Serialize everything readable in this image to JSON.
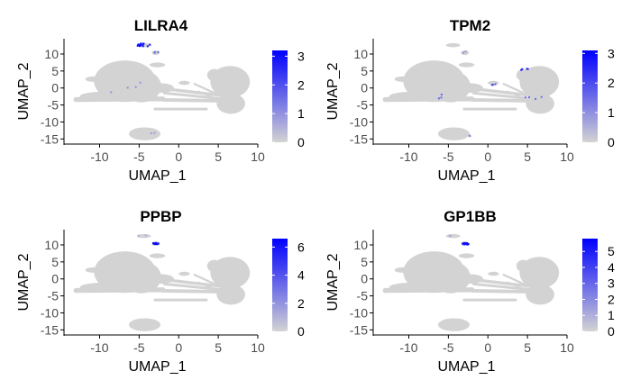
{
  "chart_data": [
    {
      "type": "scatter",
      "title": "LILRA4",
      "xlabel": "UMAP_1",
      "ylabel": "UMAP_2",
      "xlim": [
        -14.5,
        10
      ],
      "ylim": [
        -16.5,
        14.5
      ],
      "x_ticks": [
        -10,
        -5,
        0,
        5,
        10
      ],
      "y_ticks": [
        -15,
        -10,
        -5,
        0,
        5,
        10
      ],
      "grid": false,
      "legend": "right",
      "colorbar": {
        "min": 0,
        "max": 3.2,
        "ticks": [
          0,
          1,
          2,
          3
        ],
        "low_color": "#d3d3d3",
        "high_color": "#0000ff"
      },
      "hotspots": [
        {
          "x": -4.4,
          "y": 12.6,
          "value": 3.0,
          "spread": 0.8,
          "count": 14
        },
        {
          "x": -2.9,
          "y": 10.5,
          "value": 1.6,
          "spread": 0.4,
          "count": 3
        },
        {
          "x": -7.5,
          "y": 0.4,
          "value": 1.0,
          "spread": 3.0,
          "count": 4
        },
        {
          "x": -4.0,
          "y": -13.5,
          "value": 0.8,
          "spread": 1.0,
          "count": 2
        }
      ]
    },
    {
      "type": "scatter",
      "title": "TPM2",
      "xlabel": "UMAP_1",
      "ylabel": "UMAP_2",
      "xlim": [
        -14.5,
        10
      ],
      "ylim": [
        -16.5,
        14.5
      ],
      "x_ticks": [
        -10,
        -5,
        0,
        5,
        10
      ],
      "y_ticks": [
        -15,
        -10,
        -5,
        0,
        5,
        10
      ],
      "grid": false,
      "legend": "right",
      "colorbar": {
        "min": 0,
        "max": 3.1,
        "ticks": [
          0,
          1,
          2,
          3
        ],
        "low_color": "#d3d3d3",
        "high_color": "#0000ff"
      },
      "hotspots": [
        {
          "x": 4.8,
          "y": 5.6,
          "value": 2.6,
          "spread": 0.6,
          "count": 4
        },
        {
          "x": 1.0,
          "y": 1.2,
          "value": 2.0,
          "spread": 0.5,
          "count": 3
        },
        {
          "x": -5.5,
          "y": -2.5,
          "value": 1.6,
          "spread": 1.0,
          "count": 3
        },
        {
          "x": 5.5,
          "y": -2.5,
          "value": 1.5,
          "spread": 1.5,
          "count": 4
        },
        {
          "x": -2.5,
          "y": -14.0,
          "value": 1.2,
          "spread": 0.6,
          "count": 2
        },
        {
          "x": -3.0,
          "y": 10.5,
          "value": 1.0,
          "spread": 0.4,
          "count": 2
        }
      ]
    },
    {
      "type": "scatter",
      "title": "PPBP",
      "xlabel": "UMAP_1",
      "ylabel": "UMAP_2",
      "xlim": [
        -14.5,
        10
      ],
      "ylim": [
        -16.5,
        14.5
      ],
      "x_ticks": [
        -10,
        -5,
        0,
        5,
        10
      ],
      "y_ticks": [
        -15,
        -10,
        -5,
        0,
        5,
        10
      ],
      "grid": false,
      "legend": "right",
      "colorbar": {
        "min": 0,
        "max": 6.6,
        "ticks": [
          0,
          2,
          4,
          6
        ],
        "low_color": "#d3d3d3",
        "high_color": "#0000ff"
      },
      "hotspots": [
        {
          "x": -2.8,
          "y": 10.3,
          "value": 6.2,
          "spread": 0.4,
          "count": 14
        },
        {
          "x": -4.6,
          "y": 12.8,
          "value": 1.2,
          "spread": 0.5,
          "count": 2
        }
      ]
    },
    {
      "type": "scatter",
      "title": "GP1BB",
      "xlabel": "UMAP_1",
      "ylabel": "UMAP_2",
      "xlim": [
        -14.5,
        10
      ],
      "ylim": [
        -16.5,
        14.5
      ],
      "x_ticks": [
        -10,
        -5,
        0,
        5,
        10
      ],
      "y_ticks": [
        -15,
        -10,
        -5,
        0,
        5,
        10
      ],
      "grid": false,
      "legend": "right",
      "colorbar": {
        "min": 0,
        "max": 5.8,
        "ticks": [
          0,
          1,
          2,
          3,
          4,
          5
        ],
        "low_color": "#d3d3d3",
        "high_color": "#0000ff"
      },
      "hotspots": [
        {
          "x": -2.8,
          "y": 10.3,
          "value": 5.5,
          "spread": 0.4,
          "count": 14
        },
        {
          "x": -4.6,
          "y": 12.8,
          "value": 1.0,
          "spread": 0.5,
          "count": 2
        }
      ]
    }
  ],
  "embedding_shapes": [
    {
      "kind": "blob",
      "cx": -6.8,
      "cy": 2.0,
      "rx": 3.9,
      "ry": 6.1
    },
    {
      "kind": "blob",
      "cx": -4.7,
      "cy": 0.5,
      "rx": 2.5,
      "ry": 4.7
    },
    {
      "kind": "blob",
      "cx": 6.5,
      "cy": 1.8,
      "rx": 2.5,
      "ry": 4.7
    },
    {
      "kind": "blob",
      "cx": 6.6,
      "cy": -4.6,
      "rx": 1.8,
      "ry": 3.0
    },
    {
      "kind": "blob",
      "cx": -9.5,
      "cy": -2.5,
      "rx": 3.0,
      "ry": 1.4
    },
    {
      "kind": "blob",
      "cx": -4.3,
      "cy": -13.5,
      "rx": 2.0,
      "ry": 1.9
    },
    {
      "kind": "blob",
      "cx": -2.2,
      "cy": 0.0,
      "rx": 1.6,
      "ry": 1.4
    },
    {
      "kind": "blob",
      "cx": 0.7,
      "cy": 1.5,
      "rx": 0.7,
      "ry": 0.6
    },
    {
      "kind": "blob",
      "cx": 4.5,
      "cy": 3.8,
      "rx": 0.9,
      "ry": 1.8
    },
    {
      "kind": "blob",
      "cx": -10.8,
      "cy": 2.6,
      "rx": 1.0,
      "ry": 0.8
    },
    {
      "kind": "blob",
      "cx": -4.4,
      "cy": 12.6,
      "rx": 0.9,
      "ry": 0.6
    },
    {
      "kind": "blob",
      "cx": -2.9,
      "cy": 10.4,
      "rx": 0.5,
      "ry": 0.7
    },
    {
      "kind": "blob",
      "cx": -2.7,
      "cy": 6.8,
      "rx": 1.0,
      "ry": 0.7
    },
    {
      "kind": "bar",
      "x1": -2.0,
      "y1": -0.2,
      "x2": 7.0,
      "y2": -2.6,
      "w": 0.9
    },
    {
      "kind": "bar",
      "x1": -1.8,
      "y1": -1.5,
      "x2": 6.5,
      "y2": -3.4,
      "w": 0.8
    },
    {
      "kind": "bar",
      "x1": -2.0,
      "y1": -3.5,
      "x2": 6.0,
      "y2": -3.8,
      "w": 1.0
    },
    {
      "kind": "bar",
      "x1": -13.0,
      "y1": -3.4,
      "x2": -2.0,
      "y2": -3.2,
      "w": 1.4
    },
    {
      "kind": "bar",
      "x1": -3.0,
      "y1": -6.2,
      "x2": 3.5,
      "y2": -6.2,
      "w": 0.8
    },
    {
      "kind": "bar",
      "x1": 2.0,
      "y1": 1.2,
      "x2": 5.0,
      "y2": -2.0,
      "w": 0.6
    },
    {
      "kind": "bar",
      "x1": 2.5,
      "y1": -1.0,
      "x2": 5.5,
      "y2": -4.0,
      "w": 0.5
    }
  ],
  "cell_color": "#d3d3d3"
}
